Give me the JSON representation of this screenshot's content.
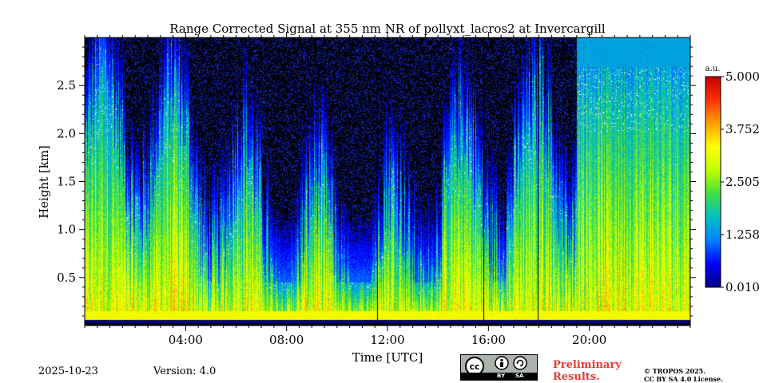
{
  "chart_data": {
    "type": "heatmap",
    "title": "Range Corrected Signal at 355 nm NR of pollyxt_lacros2 at Invercargill",
    "xlabel": "Time [UTC]",
    "ylabel": "Height [km]",
    "xlim_hours": [
      0,
      24
    ],
    "ylim_km": [
      0,
      3.0
    ],
    "x_ticks": [
      {
        "hour": 4,
        "label": "04:00"
      },
      {
        "hour": 8,
        "label": "08:00"
      },
      {
        "hour": 12,
        "label": "12:00"
      },
      {
        "hour": 16,
        "label": "16:00"
      },
      {
        "hour": 20,
        "label": "20:00"
      }
    ],
    "y_ticks": [
      {
        "value": 0.5,
        "label": "0.5"
      },
      {
        "value": 1.0,
        "label": "1.0"
      },
      {
        "value": 1.5,
        "label": "1.5"
      },
      {
        "value": 2.0,
        "label": "2.0"
      },
      {
        "value": 2.5,
        "label": "2.5"
      }
    ],
    "colorbar": {
      "unit": "a.u.",
      "range": [
        0.01,
        5.0
      ],
      "ticks": [
        {
          "value": 0.01,
          "label": "0.010"
        },
        {
          "value": 1.258,
          "label": "1.258"
        },
        {
          "value": 2.505,
          "label": "2.505"
        },
        {
          "value": 3.752,
          "label": "3.752"
        },
        {
          "value": 5.0,
          "label": "5.000"
        }
      ],
      "colormap": [
        "#000080",
        "#0000ff",
        "#0080ff",
        "#00c0c0",
        "#40e040",
        "#c0ff00",
        "#ffff00",
        "#ffa000",
        "#ff3000",
        "#c00000"
      ]
    },
    "missing_data_hours": [
      11.6,
      15.8,
      17.95
    ]
  },
  "footer": {
    "date": "2025-10-23",
    "version": "Version: 4.0",
    "license_badge": {
      "cc": "cc",
      "by": "BY",
      "sa": "SA"
    },
    "preliminary_line1": "Preliminary",
    "preliminary_line2": "Results.",
    "copyright_line1": "© TROPOS 2025.",
    "copyright_line2": "CC BY SA 4.0 License."
  }
}
